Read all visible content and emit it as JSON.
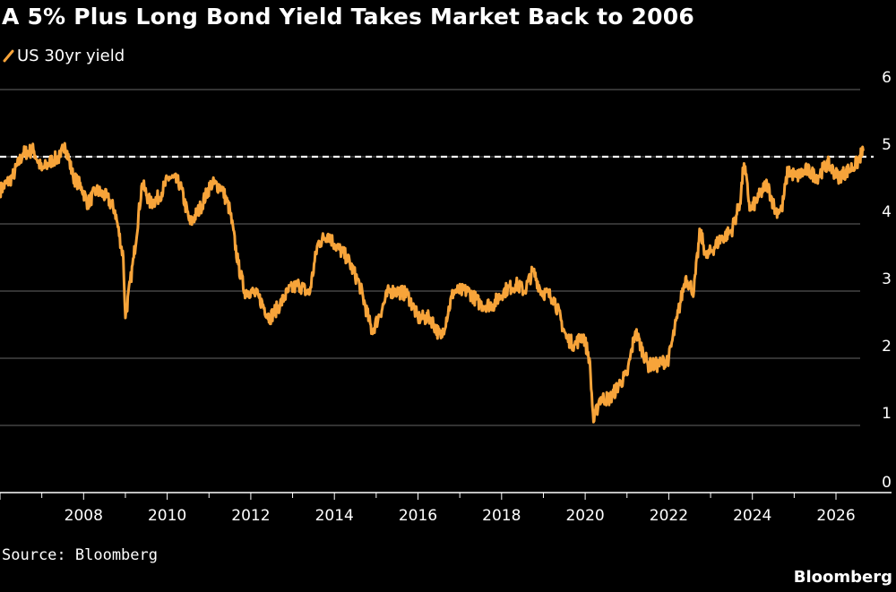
{
  "title": "A 5% Plus Long Bond Yield Takes Market Back to 2006",
  "source": "Source: Bloomberg",
  "brand": "Bloomberg",
  "colors": {
    "background": "#000000",
    "series": "#f7a43a",
    "grid": "#666666",
    "reference": "#ffffff",
    "text": "#ffffff"
  },
  "chart_data": {
    "type": "line",
    "series": [
      {
        "name": "US 30yr yield",
        "x": [
          2006.0,
          2006.3,
          2006.55,
          2006.8,
          2007.0,
          2007.25,
          2007.45,
          2007.55,
          2007.75,
          2007.95,
          2008.1,
          2008.3,
          2008.55,
          2008.75,
          2008.95,
          2009.0,
          2009.2,
          2009.4,
          2009.6,
          2009.8,
          2010.05,
          2010.3,
          2010.55,
          2010.8,
          2011.05,
          2011.3,
          2011.5,
          2011.7,
          2011.85,
          2012.0,
          2012.2,
          2012.45,
          2012.7,
          2012.9,
          2013.15,
          2013.4,
          2013.6,
          2013.85,
          2014.0,
          2014.3,
          2014.6,
          2014.9,
          2015.05,
          2015.3,
          2015.5,
          2015.75,
          2016.0,
          2016.3,
          2016.55,
          2016.85,
          2017.2,
          2017.5,
          2017.8,
          2018.05,
          2018.35,
          2018.55,
          2018.75,
          2018.95,
          2019.25,
          2019.55,
          2019.75,
          2019.95,
          2020.1,
          2020.2,
          2020.35,
          2020.6,
          2020.85,
          2021.0,
          2021.2,
          2021.5,
          2021.75,
          2022.0,
          2022.2,
          2022.4,
          2022.6,
          2022.75,
          2022.9,
          2023.2,
          2023.5,
          2023.7,
          2023.8,
          2023.95,
          2024.15,
          2024.35,
          2024.55,
          2024.7,
          2024.85,
          2025.05,
          2025.3,
          2025.55,
          2025.8,
          2026.05,
          2026.3,
          2026.5,
          2026.65
        ],
        "values": [
          4.5,
          4.7,
          5.05,
          5.1,
          4.8,
          4.95,
          5.0,
          5.2,
          4.7,
          4.55,
          4.3,
          4.5,
          4.4,
          4.2,
          3.5,
          2.6,
          3.5,
          4.6,
          4.3,
          4.4,
          4.7,
          4.6,
          4.0,
          4.25,
          4.6,
          4.55,
          4.2,
          3.4,
          3.0,
          3.0,
          2.9,
          2.6,
          2.8,
          3.0,
          3.1,
          2.95,
          3.7,
          3.85,
          3.7,
          3.5,
          3.1,
          2.4,
          2.6,
          3.0,
          3.0,
          2.95,
          2.6,
          2.6,
          2.3,
          3.0,
          3.0,
          2.8,
          2.8,
          3.0,
          3.1,
          3.0,
          3.3,
          3.0,
          2.9,
          2.3,
          2.2,
          2.35,
          2.0,
          1.05,
          1.4,
          1.4,
          1.65,
          1.75,
          2.4,
          1.9,
          1.9,
          2.0,
          2.6,
          3.2,
          3.0,
          3.9,
          3.5,
          3.75,
          3.9,
          4.3,
          4.9,
          4.2,
          4.4,
          4.6,
          4.2,
          4.2,
          4.8,
          4.7,
          4.8,
          4.7,
          4.9,
          4.7,
          4.8,
          4.9,
          5.1
        ]
      }
    ],
    "xticks": [
      "2008",
      "2010",
      "2012",
      "2014",
      "2016",
      "2018",
      "2020",
      "2022",
      "2024",
      "2026"
    ],
    "yticks": [
      "0",
      "1",
      "2",
      "3",
      "4",
      "5",
      "6"
    ],
    "xlim": [
      2006.0,
      2026.9
    ],
    "ylim": [
      0,
      6
    ],
    "reference_line": {
      "y": 5,
      "style": "dashed"
    },
    "grid": "horizontal",
    "ylabel_position": "right",
    "legend_position": "top-left"
  }
}
